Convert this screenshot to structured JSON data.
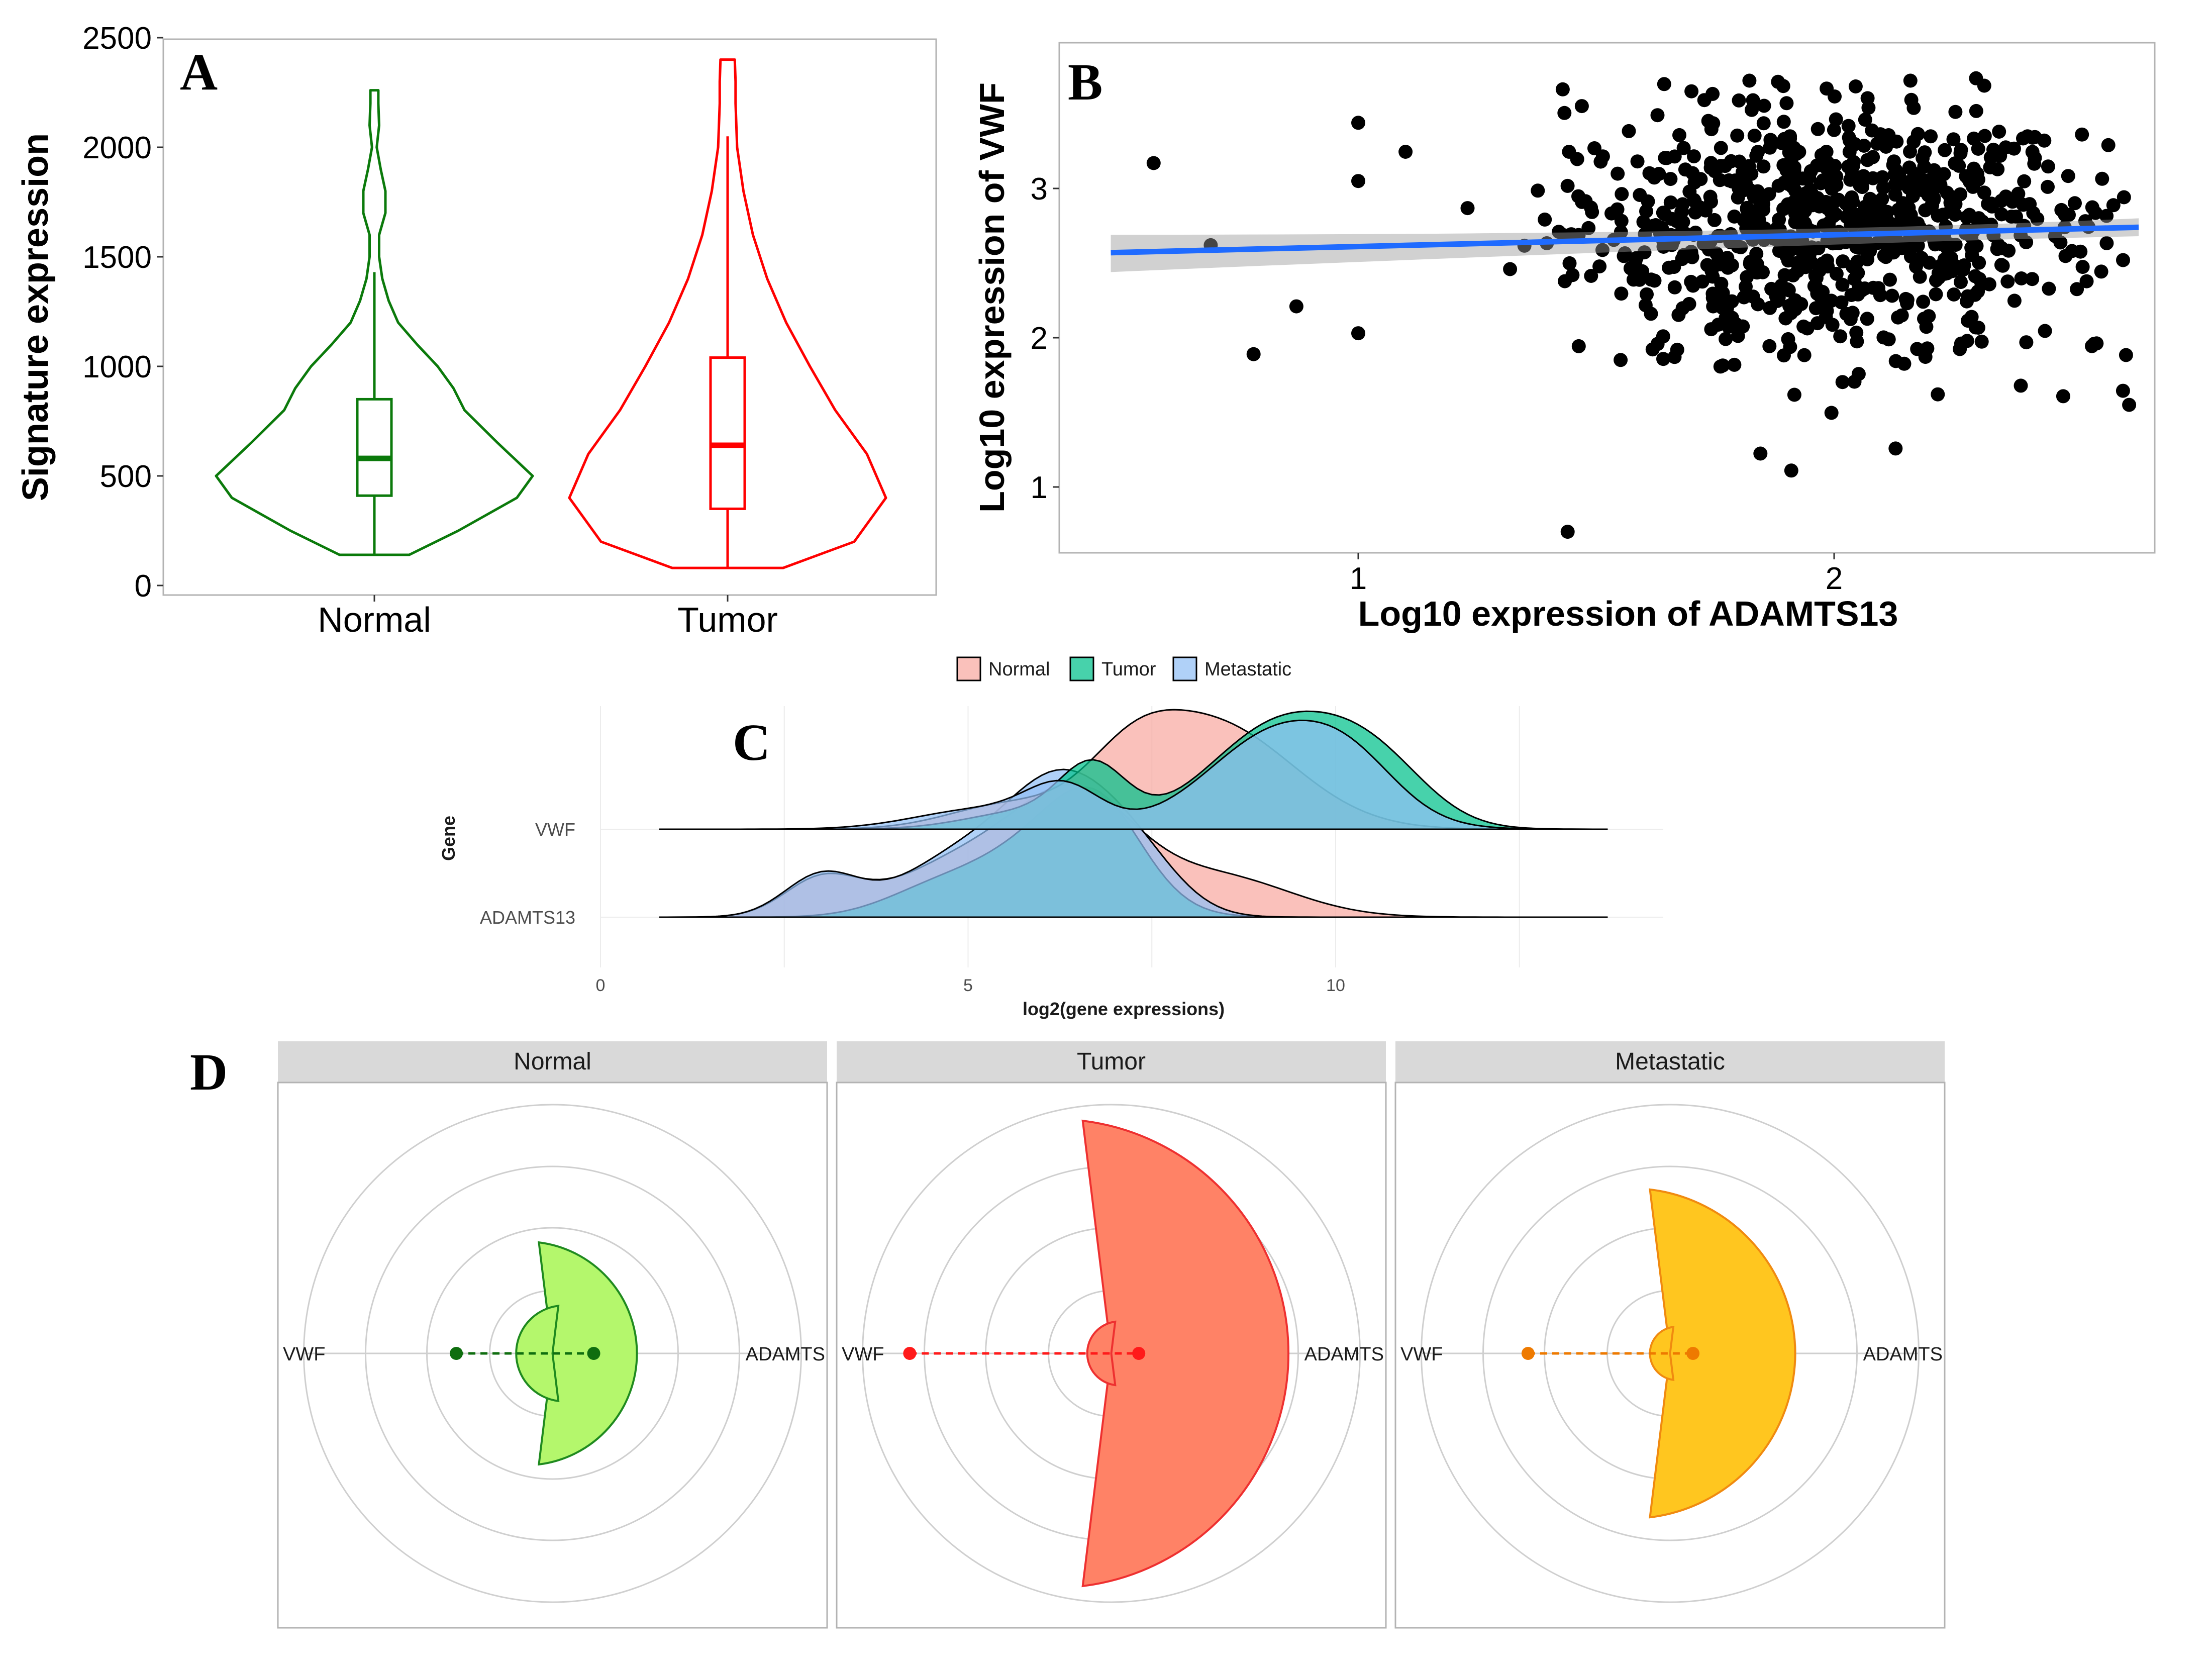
{
  "panels": {
    "A": {
      "letter": "A"
    },
    "B": {
      "letter": "B"
    },
    "C": {
      "letter": "C"
    },
    "D": {
      "letter": "D"
    }
  },
  "chart_data": [
    {
      "panel": "A",
      "type": "violin",
      "ylabel": "Signature expression",
      "yticks": [
        0,
        500,
        1000,
        1500,
        2000,
        2500
      ],
      "ylim": [
        0,
        2500
      ],
      "categories": [
        "Normal",
        "Tumor"
      ],
      "colors": {
        "Normal": "#0b7a0b",
        "Tumor": "#ff0000"
      },
      "series": [
        {
          "name": "Normal",
          "min": 140,
          "max": 2260,
          "box": {
            "q1": 410,
            "median": 580,
            "q3": 850,
            "whisker_low": 140,
            "whisker_high": 1430
          },
          "density": [
            [
              140,
              0.22
            ],
            [
              250,
              0.53
            ],
            [
              400,
              0.9
            ],
            [
              500,
              1.0
            ],
            [
              650,
              0.78
            ],
            [
              800,
              0.57
            ],
            [
              900,
              0.5
            ],
            [
              1000,
              0.4
            ],
            [
              1100,
              0.27
            ],
            [
              1200,
              0.15
            ],
            [
              1300,
              0.09
            ],
            [
              1400,
              0.05
            ],
            [
              1500,
              0.03
            ],
            [
              1600,
              0.03
            ],
            [
              1700,
              0.07
            ],
            [
              1800,
              0.07
            ],
            [
              1900,
              0.04
            ],
            [
              2000,
              0.015
            ],
            [
              2100,
              0.03
            ],
            [
              2200,
              0.025
            ],
            [
              2260,
              0.025
            ]
          ]
        },
        {
          "name": "Tumor",
          "min": 80,
          "max": 2400,
          "box": {
            "q1": 350,
            "median": 640,
            "q3": 1040,
            "whisker_low": 80,
            "whisker_high": 2050
          },
          "density": [
            [
              80,
              0.35
            ],
            [
              200,
              0.8
            ],
            [
              400,
              1.0
            ],
            [
              600,
              0.88
            ],
            [
              800,
              0.68
            ],
            [
              1000,
              0.52
            ],
            [
              1200,
              0.37
            ],
            [
              1400,
              0.25
            ],
            [
              1600,
              0.16
            ],
            [
              1800,
              0.1
            ],
            [
              2000,
              0.06
            ],
            [
              2200,
              0.05
            ],
            [
              2300,
              0.05
            ],
            [
              2400,
              0.045
            ]
          ]
        }
      ]
    },
    {
      "panel": "B",
      "type": "scatter",
      "xlabel": "Log10 expression of ADAMTS13",
      "ylabel": "Log10 expression of VWF",
      "xticks": [
        1,
        2
      ],
      "yticks": [
        1,
        2,
        3
      ],
      "xlim": [
        0.45,
        2.68
      ],
      "ylim": [
        0.55,
        4.0
      ],
      "point_color": "#000000",
      "trend": {
        "color": "#1f6bff",
        "x": [
          0.48,
          2.64
        ],
        "y": [
          2.57,
          2.74
        ]
      },
      "point_count": 800
    },
    {
      "panel": "C",
      "type": "ridgeline",
      "xlabel": "log2(gene expressions)",
      "ylabel": "Gene",
      "xticks": [
        0,
        5,
        10
      ],
      "xlim": [
        0,
        14.5
      ],
      "categories": [
        "VWF",
        "ADAMTS13"
      ],
      "legend_position": "top",
      "series": [
        {
          "name": "Normal",
          "color": "#f8a9a1"
        },
        {
          "name": "Tumor",
          "color": "#00c08b"
        },
        {
          "name": "Metastatic",
          "color": "#91bff5"
        }
      ]
    },
    {
      "panel": "D",
      "type": "polar",
      "facets": [
        "Normal",
        "Tumor",
        "Metastatic"
      ],
      "axis_labels": [
        "VWF",
        "ADAMTS"
      ],
      "rings": 4,
      "series": [
        {
          "name": "Normal",
          "fill": "#b4f76c",
          "stroke": "#1f8a1f",
          "point": "#0f6e0f",
          "VWF": 0.42,
          "ADAMTS": 0.18
        },
        {
          "name": "Tumor",
          "fill": "#ff8266",
          "stroke": "#ee3030",
          "point": "#ff1a1a",
          "VWF": 0.88,
          "ADAMTS": 0.12
        },
        {
          "name": "Metastatic",
          "fill": "#ffc61f",
          "stroke": "#f08a10",
          "point": "#ee7a00",
          "VWF": 0.62,
          "ADAMTS": 0.1
        }
      ]
    }
  ]
}
